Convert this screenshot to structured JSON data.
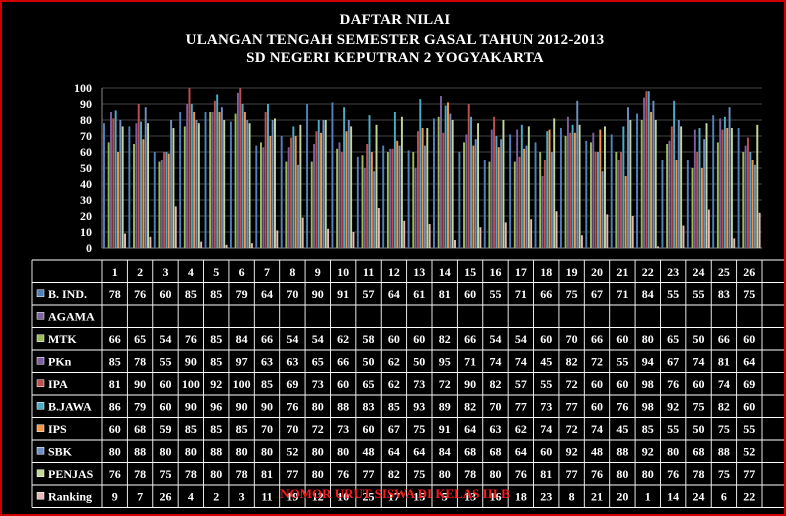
{
  "chart_data": {
    "type": "bar",
    "title": [
      "DAFTAR NILAI",
      "ULANGAN TENGAH SEMESTER GASAL TAHUN 2012-2013",
      "SD NEGERI KEPUTRAN 2 YOGYAKARTA"
    ],
    "xlabel": "NOMOR URUT SISWA DI KELAS III B",
    "ylim": [
      0,
      100
    ],
    "y_ticks": [
      "0",
      "10",
      "20",
      "30",
      "40",
      "50",
      "60",
      "70",
      "80",
      "90",
      "100"
    ],
    "grid": true,
    "legend": "data table below chart",
    "categories": [
      "1",
      "2",
      "3",
      "4",
      "5",
      "6",
      "7",
      "8",
      "9",
      "10",
      "11",
      "12",
      "13",
      "14",
      "15",
      "16",
      "17",
      "18",
      "19",
      "20",
      "21",
      "22",
      "23",
      "24",
      "25",
      "26"
    ],
    "series": [
      {
        "name": "B. IND.",
        "color": "#4f81bd",
        "values": [
          78,
          76,
          60,
          85,
          85,
          79,
          64,
          70,
          90,
          91,
          57,
          64,
          61,
          81,
          60,
          55,
          71,
          66,
          75,
          67,
          71,
          84,
          55,
          55,
          83,
          75
        ]
      },
      {
        "name": "AGAMA",
        "color": "#8064a2",
        "values": [
          null,
          null,
          null,
          null,
          null,
          null,
          null,
          null,
          null,
          null,
          null,
          null,
          null,
          null,
          null,
          null,
          null,
          null,
          null,
          null,
          null,
          null,
          null,
          null,
          null,
          null
        ]
      },
      {
        "name": "MTK",
        "color": "#9bbb59",
        "values": [
          66,
          65,
          54,
          76,
          85,
          84,
          66,
          54,
          54,
          62,
          58,
          60,
          60,
          82,
          66,
          54,
          54,
          60,
          70,
          66,
          60,
          80,
          65,
          50,
          66,
          60
        ]
      },
      {
        "name": "PKn",
        "color": "#7d5fa0",
        "values": [
          85,
          78,
          55,
          90,
          85,
          97,
          63,
          63,
          65,
          66,
          50,
          62,
          50,
          95,
          71,
          74,
          74,
          45,
          82,
          72,
          55,
          94,
          67,
          74,
          81,
          64
        ]
      },
      {
        "name": "IPA",
        "color": "#c0504d",
        "values": [
          81,
          90,
          60,
          100,
          92,
          100,
          85,
          69,
          73,
          60,
          65,
          62,
          73,
          72,
          90,
          82,
          57,
          55,
          72,
          60,
          60,
          98,
          76,
          60,
          74,
          69
        ]
      },
      {
        "name": "B.JAWA",
        "color": "#4bacc6",
        "values": [
          86,
          79,
          60,
          90,
          96,
          90,
          90,
          76,
          80,
          88,
          83,
          85,
          93,
          89,
          82,
          70,
          77,
          73,
          77,
          60,
          76,
          98,
          92,
          75,
          82,
          60
        ]
      },
      {
        "name": "IPS",
        "color": "#f79646",
        "values": [
          60,
          68,
          59,
          85,
          85,
          85,
          70,
          70,
          72,
          73,
          60,
          67,
          75,
          91,
          64,
          63,
          62,
          74,
          72,
          74,
          45,
          85,
          55,
          50,
          75,
          55
        ]
      },
      {
        "name": "SBK",
        "color": "#6e8fc5",
        "values": [
          80,
          88,
          80,
          80,
          88,
          80,
          80,
          52,
          80,
          80,
          48,
          64,
          64,
          84,
          68,
          68,
          64,
          60,
          92,
          48,
          88,
          92,
          80,
          68,
          88,
          52
        ]
      },
      {
        "name": "PENJAS",
        "color": "#c3d69b",
        "values": [
          76,
          78,
          75,
          78,
          80,
          78,
          81,
          77,
          80,
          76,
          77,
          82,
          75,
          80,
          78,
          80,
          76,
          81,
          77,
          76,
          80,
          80,
          76,
          78,
          75,
          77
        ]
      },
      {
        "name": "Ranking",
        "color": "#e6b9b8",
        "values": [
          9,
          7,
          26,
          4,
          2,
          3,
          11,
          19,
          12,
          10,
          25,
          17,
          15,
          5,
          13,
          16,
          18,
          23,
          8,
          21,
          20,
          1,
          14,
          24,
          6,
          22
        ]
      }
    ]
  }
}
